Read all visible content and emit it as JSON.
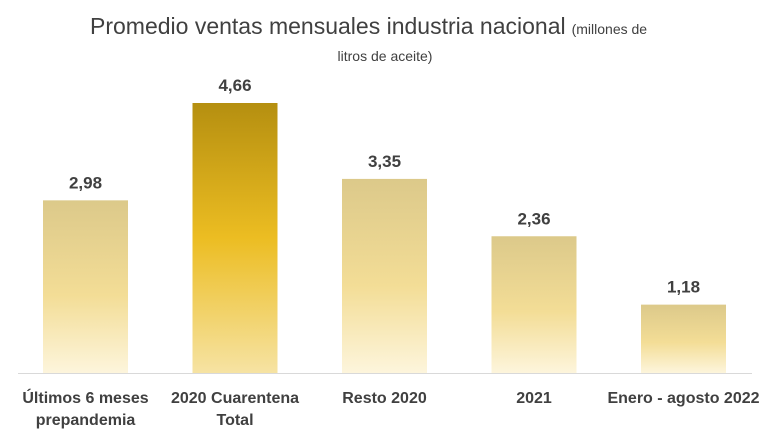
{
  "chart_data": {
    "type": "bar",
    "title": "Promedio ventas mensuales industria nacional",
    "subtitle_line1": "(millones de",
    "subtitle_line2": "litros de aceite)",
    "categories": [
      [
        "Últimos 6 meses",
        "prepandemia"
      ],
      [
        "2020 Cuarentena",
        "Total"
      ],
      [
        "Resto 2020"
      ],
      [
        "2021"
      ],
      [
        "Enero - agosto 2022"
      ]
    ],
    "values": [
      2.98,
      4.66,
      3.35,
      2.36,
      1.18
    ],
    "value_labels": [
      "2,98",
      "4,66",
      "3,35",
      "2,36",
      "1,18"
    ],
    "highlight_index": 1,
    "xlabel": "",
    "ylabel": "",
    "ylim": [
      0,
      4.66
    ],
    "grid": false,
    "colors": {
      "highlight_top": "#b58f10",
      "highlight_mid": "#ecbd22",
      "highlight_bottom": "#f6e3a3",
      "normal_top": "#dcc98a",
      "normal_mid": "#f3dd96",
      "normal_bottom": "#fdf5dc",
      "axis": "#d9d9d9"
    }
  }
}
